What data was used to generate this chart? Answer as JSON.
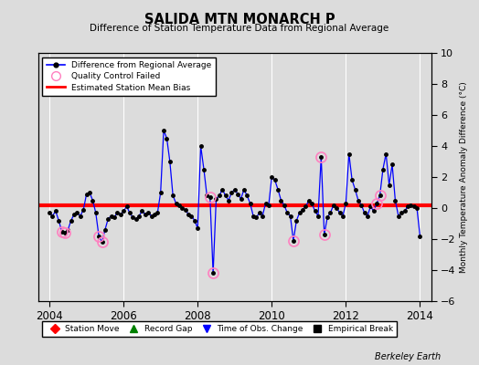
{
  "title": "SALIDA MTN MONARCH P",
  "subtitle": "Difference of Station Temperature Data from Regional Average",
  "ylabel_right": "Monthly Temperature Anomaly Difference (°C)",
  "background_color": "#dcdcdc",
  "plot_bg_color": "#dcdcdc",
  "bias_value": 0.15,
  "ylim": [
    -6,
    10
  ],
  "xlim": [
    2003.7,
    2014.3
  ],
  "xticks": [
    2004,
    2006,
    2008,
    2010,
    2012,
    2014
  ],
  "yticks": [
    -6,
    -4,
    -2,
    0,
    2,
    4,
    6,
    8,
    10
  ],
  "line_color": "#0000ff",
  "dot_color": "#000000",
  "bias_color": "#ff0000",
  "qc_color": "#ff80c0",
  "footer": "Berkeley Earth",
  "time_series": [
    [
      2004.0,
      -0.3
    ],
    [
      2004.083,
      -0.5
    ],
    [
      2004.167,
      -0.2
    ],
    [
      2004.25,
      -0.8
    ],
    [
      2004.333,
      -1.5
    ],
    [
      2004.417,
      -1.6
    ],
    [
      2004.5,
      -1.4
    ],
    [
      2004.583,
      -0.8
    ],
    [
      2004.667,
      -0.4
    ],
    [
      2004.75,
      -0.3
    ],
    [
      2004.833,
      -0.5
    ],
    [
      2004.917,
      -0.1
    ],
    [
      2005.0,
      0.9
    ],
    [
      2005.083,
      1.0
    ],
    [
      2005.167,
      0.5
    ],
    [
      2005.25,
      -0.3
    ],
    [
      2005.333,
      -1.8
    ],
    [
      2005.417,
      -2.2
    ],
    [
      2005.5,
      -1.4
    ],
    [
      2005.583,
      -0.7
    ],
    [
      2005.667,
      -0.5
    ],
    [
      2005.75,
      -0.6
    ],
    [
      2005.833,
      -0.3
    ],
    [
      2005.917,
      -0.4
    ],
    [
      2006.0,
      -0.2
    ],
    [
      2006.083,
      0.1
    ],
    [
      2006.167,
      -0.3
    ],
    [
      2006.25,
      -0.6
    ],
    [
      2006.333,
      -0.7
    ],
    [
      2006.417,
      -0.5
    ],
    [
      2006.5,
      -0.2
    ],
    [
      2006.583,
      -0.4
    ],
    [
      2006.667,
      -0.3
    ],
    [
      2006.75,
      -0.5
    ],
    [
      2006.833,
      -0.4
    ],
    [
      2006.917,
      -0.3
    ],
    [
      2007.0,
      1.0
    ],
    [
      2007.083,
      5.0
    ],
    [
      2007.167,
      4.5
    ],
    [
      2007.25,
      3.0
    ],
    [
      2007.333,
      0.8
    ],
    [
      2007.417,
      0.3
    ],
    [
      2007.5,
      0.2
    ],
    [
      2007.583,
      0.0
    ],
    [
      2007.667,
      -0.1
    ],
    [
      2007.75,
      -0.4
    ],
    [
      2007.833,
      -0.5
    ],
    [
      2007.917,
      -0.8
    ],
    [
      2008.0,
      -1.3
    ],
    [
      2008.083,
      4.0
    ],
    [
      2008.167,
      2.5
    ],
    [
      2008.25,
      0.8
    ],
    [
      2008.333,
      0.7
    ],
    [
      2008.417,
      -4.2
    ],
    [
      2008.5,
      0.6
    ],
    [
      2008.583,
      0.8
    ],
    [
      2008.667,
      1.2
    ],
    [
      2008.75,
      0.8
    ],
    [
      2008.833,
      0.5
    ],
    [
      2008.917,
      1.0
    ],
    [
      2009.0,
      1.2
    ],
    [
      2009.083,
      0.9
    ],
    [
      2009.167,
      0.6
    ],
    [
      2009.25,
      1.2
    ],
    [
      2009.333,
      0.8
    ],
    [
      2009.417,
      0.3
    ],
    [
      2009.5,
      -0.5
    ],
    [
      2009.583,
      -0.6
    ],
    [
      2009.667,
      -0.3
    ],
    [
      2009.75,
      -0.5
    ],
    [
      2009.833,
      0.3
    ],
    [
      2009.917,
      0.2
    ],
    [
      2010.0,
      2.0
    ],
    [
      2010.083,
      1.8
    ],
    [
      2010.167,
      1.2
    ],
    [
      2010.25,
      0.5
    ],
    [
      2010.333,
      0.2
    ],
    [
      2010.417,
      -0.3
    ],
    [
      2010.5,
      -0.5
    ],
    [
      2010.583,
      -2.1
    ],
    [
      2010.667,
      -0.8
    ],
    [
      2010.75,
      -0.3
    ],
    [
      2010.833,
      -0.1
    ],
    [
      2010.917,
      0.1
    ],
    [
      2011.0,
      0.5
    ],
    [
      2011.083,
      0.3
    ],
    [
      2011.167,
      -0.2
    ],
    [
      2011.25,
      -0.5
    ],
    [
      2011.333,
      3.3
    ],
    [
      2011.417,
      -1.7
    ],
    [
      2011.5,
      -0.6
    ],
    [
      2011.583,
      -0.3
    ],
    [
      2011.667,
      0.2
    ],
    [
      2011.75,
      0.0
    ],
    [
      2011.833,
      -0.3
    ],
    [
      2011.917,
      -0.5
    ],
    [
      2012.0,
      0.3
    ],
    [
      2012.083,
      3.5
    ],
    [
      2012.167,
      1.8
    ],
    [
      2012.25,
      1.2
    ],
    [
      2012.333,
      0.5
    ],
    [
      2012.417,
      0.2
    ],
    [
      2012.5,
      -0.3
    ],
    [
      2012.583,
      -0.5
    ],
    [
      2012.667,
      0.1
    ],
    [
      2012.75,
      -0.2
    ],
    [
      2012.833,
      0.3
    ],
    [
      2012.917,
      0.8
    ],
    [
      2013.0,
      2.5
    ],
    [
      2013.083,
      3.5
    ],
    [
      2013.167,
      1.5
    ],
    [
      2013.25,
      2.8
    ],
    [
      2013.333,
      0.5
    ],
    [
      2013.417,
      -0.5
    ],
    [
      2013.5,
      -0.3
    ],
    [
      2013.583,
      -0.2
    ],
    [
      2013.667,
      0.1
    ],
    [
      2013.75,
      0.2
    ],
    [
      2013.833,
      0.1
    ],
    [
      2013.917,
      0.0
    ],
    [
      2014.0,
      -1.8
    ]
  ],
  "qc_failed": [
    [
      2004.333,
      -1.5
    ],
    [
      2004.417,
      -1.6
    ],
    [
      2005.333,
      -1.8
    ],
    [
      2005.417,
      -2.2
    ],
    [
      2008.333,
      0.7
    ],
    [
      2008.417,
      -4.2
    ],
    [
      2010.583,
      -2.1
    ],
    [
      2011.333,
      3.3
    ],
    [
      2011.417,
      -1.7
    ],
    [
      2012.833,
      0.3
    ],
    [
      2012.917,
      0.8
    ]
  ],
  "bottom_legend": [
    {
      "label": "Station Move",
      "marker": "D",
      "color": "#ff0000"
    },
    {
      "label": "Record Gap",
      "marker": "^",
      "color": "#008000"
    },
    {
      "label": "Time of Obs. Change",
      "marker": "v",
      "color": "#0000ff"
    },
    {
      "label": "Empirical Break",
      "marker": "s",
      "color": "#000000"
    }
  ]
}
